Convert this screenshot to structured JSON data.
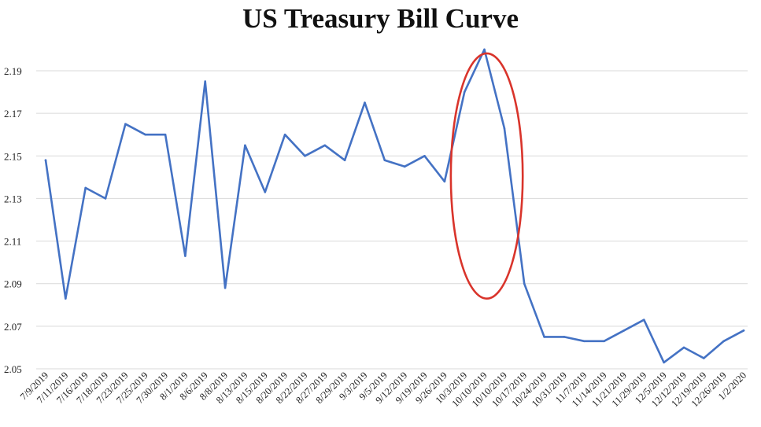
{
  "chart_data": {
    "type": "line",
    "title": "US Treasury Bill Curve",
    "xlabel": "",
    "ylabel": "",
    "ylim": [
      2.05,
      2.21
    ],
    "yticks": [
      2.05,
      2.07,
      2.09,
      2.11,
      2.13,
      2.15,
      2.17,
      2.19
    ],
    "ytick_labels": [
      "2.05",
      "2.07",
      "2.09",
      "2.11",
      "2.13",
      "2.15",
      "2.17",
      "2.19"
    ],
    "grid": true,
    "legend": "none",
    "categories": [
      "7/9/2019",
      "7/11/2019",
      "7/16/2019",
      "7/18/2019",
      "7/23/2019",
      "7/25/2019",
      "7/30/2019",
      "8/1/2019",
      "8/6/2019",
      "8/8/2019",
      "8/13/2019",
      "8/15/2019",
      "8/20/2019",
      "8/22/2019",
      "8/27/2019",
      "8/29/2019",
      "9/3/2019",
      "9/5/2019",
      "9/12/2019",
      "9/19/2019",
      "9/26/2019",
      "10/3/2019",
      "10/10/2019",
      "10/10/2019",
      "10/17/2019",
      "10/24/2019",
      "10/31/2019",
      "11/7/2019",
      "11/14/2019",
      "11/21/2019",
      "11/29/2019",
      "12/5/2019",
      "12/12/2019",
      "12/19/2019",
      "12/26/2019",
      "1/2/2020"
    ],
    "series": [
      {
        "name": "",
        "color": "#4472c4",
        "values": [
          2.148,
          2.083,
          2.135,
          2.13,
          2.165,
          2.16,
          2.16,
          2.103,
          2.185,
          2.088,
          2.155,
          2.133,
          2.16,
          2.15,
          2.155,
          2.148,
          2.175,
          2.148,
          2.145,
          2.15,
          2.138,
          2.18,
          2.2,
          2.163,
          2.09,
          2.065,
          2.065,
          2.063,
          2.063,
          2.068,
          2.073,
          2.053,
          2.06,
          2.055,
          2.063,
          2.068
        ]
      }
    ],
    "annotation": {
      "shape": "ellipse",
      "color": "#d9342b",
      "around_categories": [
        "9/26/2019",
        "10/3/2019",
        "10/10/2019",
        "10/10/2019",
        "10/17/2019"
      ]
    }
  }
}
